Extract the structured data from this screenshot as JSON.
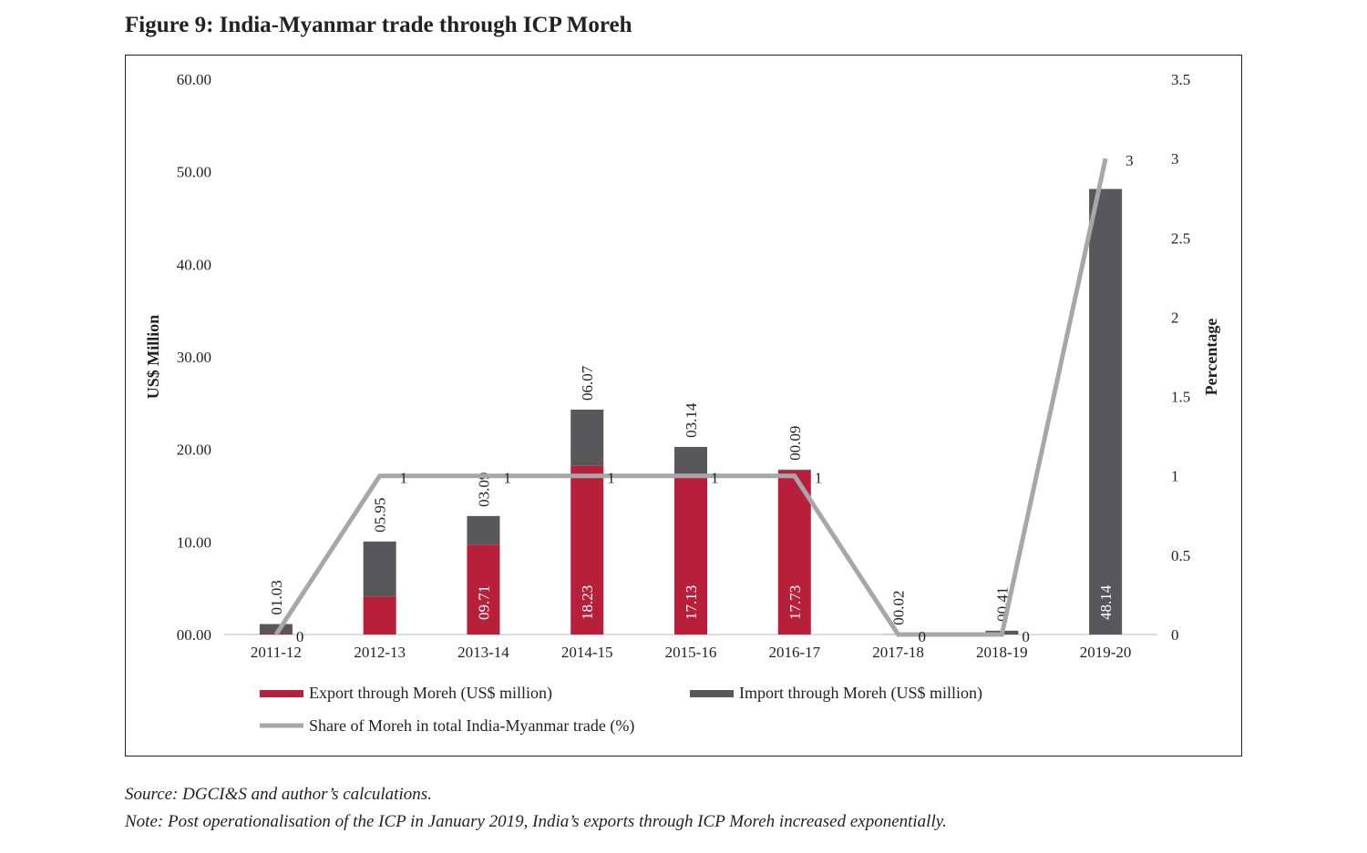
{
  "title": "Figure 9: India-Myanmar trade through ICP Moreh",
  "source": "Source: DGCI&S and author’s calculations.",
  "note": "Note: Post operationalisation of the ICP in January 2019, India’s exports through ICP Moreh increased exponentially.",
  "chart_data": {
    "type": "bar",
    "stacked": true,
    "categories": [
      "2011-12",
      "2012-13",
      "2013-14",
      "2014-15",
      "2015-16",
      "2016-17",
      "2017-18",
      "2018-19",
      "2019-20"
    ],
    "ylabel": "US$ Million",
    "y2label": "Percentage",
    "ylim": [
      0,
      60
    ],
    "y2lim": [
      0,
      3.5
    ],
    "yticks": [
      "00.00",
      "10.00",
      "20.00",
      "30.00",
      "40.00",
      "50.00",
      "60.00"
    ],
    "y2ticks": [
      "0",
      "0.5",
      "1",
      "1.5",
      "2",
      "2.5",
      "3",
      "3.5"
    ],
    "legend_position": "bottom",
    "series": [
      {
        "name": "Export through Moreh (US$ million)",
        "color": "#b71f3a",
        "values": [
          0.1,
          4.1,
          9.71,
          18.23,
          17.13,
          17.73,
          0,
          0,
          0
        ],
        "labels": [
          "",
          "",
          "09.71",
          "18.23",
          "17.13",
          "17.73",
          "",
          "",
          ""
        ]
      },
      {
        "name": "Import through Moreh (US$ million)",
        "color": "#58585a",
        "values": [
          1.03,
          5.95,
          3.09,
          6.07,
          3.14,
          0.09,
          0.02,
          0.41,
          48.14
        ],
        "labels": [
          "01.03",
          "05.95",
          "03.09",
          "06.07",
          "03.14",
          "00.09",
          "00.02",
          "00.41",
          "48.14"
        ]
      },
      {
        "name": "Share of Moreh in total India-Myanmar trade (%)",
        "type": "line",
        "axis": "right",
        "color": "#a7a7a9",
        "values": [
          0,
          1,
          1,
          1,
          1,
          1,
          0,
          0,
          3
        ],
        "labels": [
          "0",
          "1",
          "1",
          "1",
          "1",
          "1",
          "0",
          "0",
          "3"
        ]
      }
    ]
  }
}
